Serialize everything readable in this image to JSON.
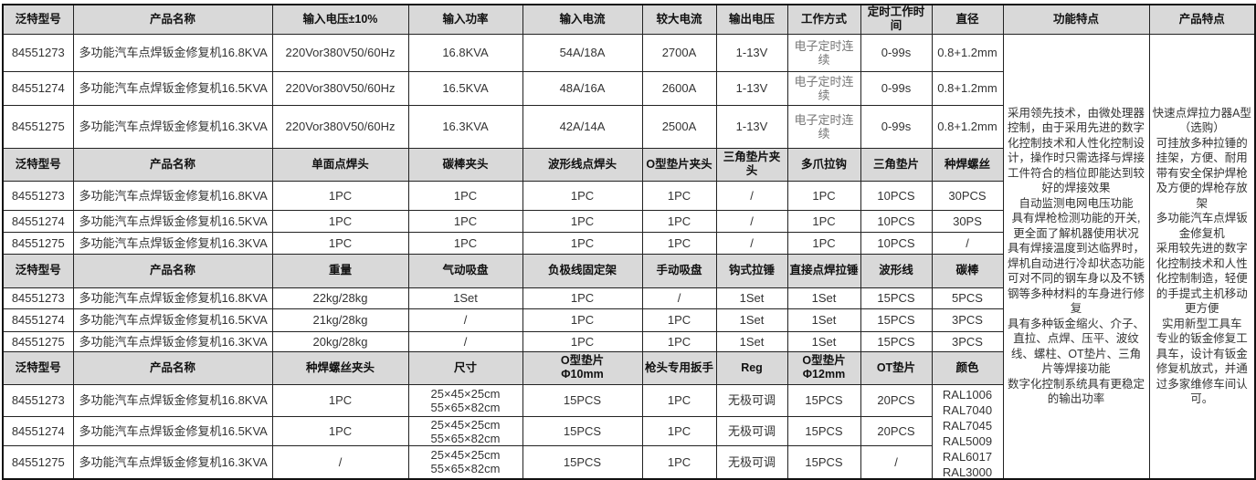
{
  "sections": [
    {
      "headers": [
        "泛特型号",
        "产品名称",
        "输入电压±10%",
        "输入功率",
        "输入电流",
        "较大电流",
        "输出电压",
        "工作方式",
        "定时工作时间",
        "直径"
      ],
      "rows": [
        [
          "84551273",
          "多功能汽车点焊钣金修复机16.8KVA",
          "220Vor380V50/60Hz",
          "16.8KVA",
          "54A/18A",
          "2700A",
          "1-13V",
          "电子定时连续",
          "0-99s",
          "0.8+1.2mm"
        ],
        [
          "84551274",
          "多功能汽车点焊钣金修复机16.5KVA",
          "220Vor380V50/60Hz",
          "16.5KVA",
          "48A/16A",
          "2600A",
          "1-13V",
          "电子定时连续",
          "0-99s",
          "0.8+1.2mm"
        ],
        [
          "84551275",
          "多功能汽车点焊钣金修复机16.3KVA",
          "220Vor380V50/60Hz",
          "16.3KVA",
          "42A/14A",
          "2500A",
          "1-13V",
          "电子定时连续",
          "0-99s",
          "0.8+1.2mm"
        ]
      ]
    },
    {
      "headers": [
        "泛特型号",
        "产品名称",
        "单面点焊头",
        "碳棒夹头",
        "波形线点焊头",
        "O型垫片夹头",
        "三角垫片夹头",
        "多爪拉钩",
        "三角垫片",
        "种焊螺丝"
      ],
      "rows": [
        [
          "84551273",
          "多功能汽车点焊钣金修复机16.8KVA",
          "1PC",
          "1PC",
          "1PC",
          "1PC",
          "/",
          "1PC",
          "10PCS",
          "30PCS"
        ],
        [
          "84551274",
          "多功能汽车点焊钣金修复机16.5KVA",
          "1PC",
          "1PC",
          "1PC",
          "1PC",
          "/",
          "1PC",
          "10PCS",
          "30PS"
        ],
        [
          "84551275",
          "多功能汽车点焊钣金修复机16.3KVA",
          "1PC",
          "1PC",
          "1PC",
          "1PC",
          "/",
          "1PC",
          "10PCS",
          "/"
        ]
      ]
    },
    {
      "headers": [
        "泛特型号",
        "产品名称",
        "重量",
        "气动吸盘",
        "负极线固定架",
        "手动吸盘",
        "钩式拉锤",
        "直接点焊拉锤",
        "波形线",
        "碳棒"
      ],
      "rows": [
        [
          "84551273",
          "多功能汽车点焊钣金修复机16.8KVA",
          "22kg/28kg",
          "1Set",
          "1PC",
          "/",
          "1Set",
          "1Set",
          "15PCS",
          "5PCS"
        ],
        [
          "84551274",
          "多功能汽车点焊钣金修复机16.5KVA",
          "21kg/28kg",
          "/",
          "1PC",
          "1PC",
          "1Set",
          "1Set",
          "15PCS",
          "3PCS"
        ],
        [
          "84551275",
          "多功能汽车点焊钣金修复机16.3KVA",
          "20kg/28kg",
          "/",
          "1PC",
          "1PC",
          "1Set",
          "1Set",
          "15PCS",
          "3PCS"
        ]
      ]
    },
    {
      "headers": [
        "泛特型号",
        "产品名称",
        "种焊螺丝夹头",
        "尺寸",
        "O型垫片\nΦ10mm",
        "枪头专用扳手",
        "Reg",
        "O型垫片\nΦ12mm",
        "OT垫片",
        "颜色"
      ],
      "rows": [
        [
          "84551273",
          "多功能汽车点焊钣金修复机16.8KVA",
          "1PC",
          "25×45×25cm\n55×65×82cm",
          "15PCS",
          "1PC",
          "无极可调",
          "15PCS",
          "20PCS"
        ],
        [
          "84551274",
          "多功能汽车点焊钣金修复机16.5KVA",
          "1PC",
          "25×45×25cm\n55×65×82cm",
          "15PCS",
          "1PC",
          "无极可调",
          "15PCS",
          "20PCS"
        ],
        [
          "84551275",
          "多功能汽车点焊钣金修复机16.3KVA",
          "/",
          "25×45×25cm\n55×65×82cm",
          "15PCS",
          "1PC",
          "无极可调",
          "15PCS",
          "/"
        ]
      ],
      "colors": [
        "RAL1006",
        "RAL7040",
        "RAL7045",
        "RAL5009",
        "RAL6017",
        "RAL3000"
      ]
    }
  ],
  "function_features": {
    "header": "功能特点",
    "paragraphs": [
      "采用领先技术，由微处理器控制，由于采用先进的数字化控制技术和人性化控制设计，操作时只需选择与焊接工件符合的档位即能达到较好的焊接效果",
      "自动监测电网电压功能",
      "具有焊枪检测功能的开关,更全面了解机器使用状况",
      "具有焊接温度到达临界时，焊机自动进行冷却状态功能",
      "可对不同的钢车身以及不锈钢等多种材料的车身进行修复",
      "具有多种钣金缩火、介子、直拉、点焊、压平、波纹线、螺柱、OT垫片、三角片等焊接功能",
      "数字化控制系统具有更稳定的输出功率"
    ]
  },
  "product_features": {
    "header": "产品特点",
    "paragraphs": [
      "快速点焊拉力器A型（选购）",
      "可挂放多种拉锤的挂架，方便、耐用带有安全保护焊枪及方便的焊枪存放架",
      "多功能汽车点焊钣金修复机",
      "采用较先进的数字化控制技术和人性化控制制造，轻便的手提式主机移动更方便",
      "实用新型工具车",
      "专业的钣金修复工具车，设计有钣金修复机放式，并通过多家维修车间认可。"
    ]
  }
}
